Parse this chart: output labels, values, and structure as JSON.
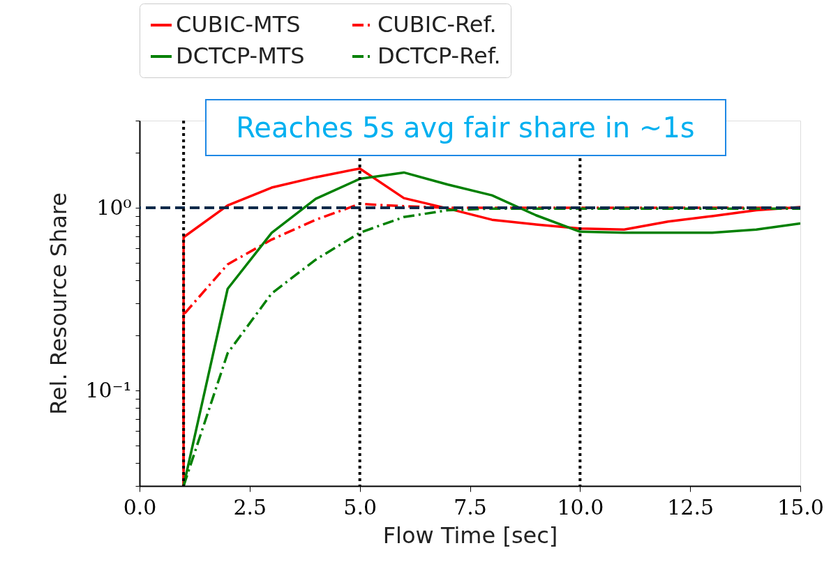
{
  "chart_data": {
    "type": "line",
    "xlabel": "Flow Time [sec]",
    "ylabel": "Rel. Resource Share",
    "annotations": [
      "Reaches 5s avg fair share in ~1s"
    ],
    "series": [
      {
        "name": "CUBIC-MTS",
        "color": "#ff0000",
        "line_style": "solid",
        "x": [
          1,
          1,
          2,
          3,
          4,
          5,
          6,
          7,
          8,
          9,
          10,
          11,
          12,
          13,
          14,
          15
        ],
        "values": [
          0.03,
          0.69,
          1.03,
          1.29,
          1.47,
          1.64,
          1.13,
          0.99,
          0.86,
          0.81,
          0.77,
          0.76,
          0.84,
          0.9,
          0.97,
          1.01
        ]
      },
      {
        "name": "CUBIC-Ref.",
        "color": "#ff0000",
        "line_style": "dashdot",
        "x": [
          1,
          1,
          2,
          3,
          4,
          5,
          6,
          7,
          8,
          9,
          10,
          11,
          12,
          13,
          14,
          15
        ],
        "values": [
          0.03,
          0.26,
          0.49,
          0.67,
          0.86,
          1.05,
          1.02,
          1.0,
          1.0,
          1.0,
          1.0,
          1.0,
          1.0,
          1.0,
          1.0,
          1.0
        ]
      },
      {
        "name": "DCTCP-MTS",
        "color": "#008000",
        "line_style": "solid",
        "x": [
          1,
          2,
          3,
          4,
          5,
          6,
          7,
          8,
          9,
          10,
          11,
          12,
          13,
          14,
          15
        ],
        "values": [
          0.03,
          0.36,
          0.73,
          1.12,
          1.44,
          1.56,
          1.34,
          1.17,
          0.91,
          0.74,
          0.73,
          0.73,
          0.73,
          0.76,
          0.82
        ]
      },
      {
        "name": "DCTCP-Ref.",
        "color": "#008000",
        "line_style": "dashdot",
        "x": [
          1,
          2,
          3,
          4,
          5,
          6,
          7,
          8,
          9,
          10,
          11,
          12,
          13,
          14,
          15
        ],
        "values": [
          0.03,
          0.16,
          0.34,
          0.52,
          0.73,
          0.89,
          0.97,
          0.99,
          0.99,
          0.99,
          0.99,
          0.99,
          0.99,
          0.99,
          0.99
        ]
      }
    ],
    "xlim": [
      0,
      15
    ],
    "xticks": [
      {
        "value": 0,
        "label": "0.0"
      },
      {
        "value": 2.5,
        "label": "2.5"
      },
      {
        "value": 5,
        "label": "5.0"
      },
      {
        "value": 7.5,
        "label": "7.5"
      },
      {
        "value": 10,
        "label": "10.0"
      },
      {
        "value": 12.5,
        "label": "12.5"
      },
      {
        "value": 15,
        "label": "15.0"
      }
    ],
    "ylim": [
      0.03,
      3
    ],
    "log": true,
    "yticks": [
      {
        "value": 0.03,
        "label": null
      },
      {
        "value": 0.04,
        "label": null
      },
      {
        "value": 0.05,
        "label": null
      },
      {
        "value": 0.06,
        "label": null
      },
      {
        "value": 0.07,
        "label": null
      },
      {
        "value": 0.08,
        "label": null
      },
      {
        "value": 0.09,
        "label": null
      },
      {
        "value": 0.1,
        "label": "10⁻¹"
      },
      {
        "value": 0.2,
        "label": null
      },
      {
        "value": 0.3,
        "label": null
      },
      {
        "value": 0.4,
        "label": null
      },
      {
        "value": 0.5,
        "label": null
      },
      {
        "value": 0.6,
        "label": null
      },
      {
        "value": 0.7,
        "label": null
      },
      {
        "value": 0.8,
        "label": null
      },
      {
        "value": 0.9,
        "label": null
      },
      {
        "value": 1,
        "label": "10⁰"
      },
      {
        "value": 2,
        "label": null
      },
      {
        "value": 3,
        "label": null
      }
    ],
    "ref_lines": [
      {
        "axis": "y",
        "value": 1,
        "color": "#0d2a4a",
        "line_style": "dashed"
      },
      {
        "axis": "x",
        "value": 1,
        "color": "#000000",
        "line_style": "dotted"
      },
      {
        "axis": "x",
        "value": 5,
        "color": "#000000",
        "line_style": "dotted"
      },
      {
        "axis": "x",
        "value": 10,
        "color": "#000000",
        "line_style": "dotted"
      }
    ],
    "grid": false,
    "legend": "top",
    "marker": "none"
  }
}
